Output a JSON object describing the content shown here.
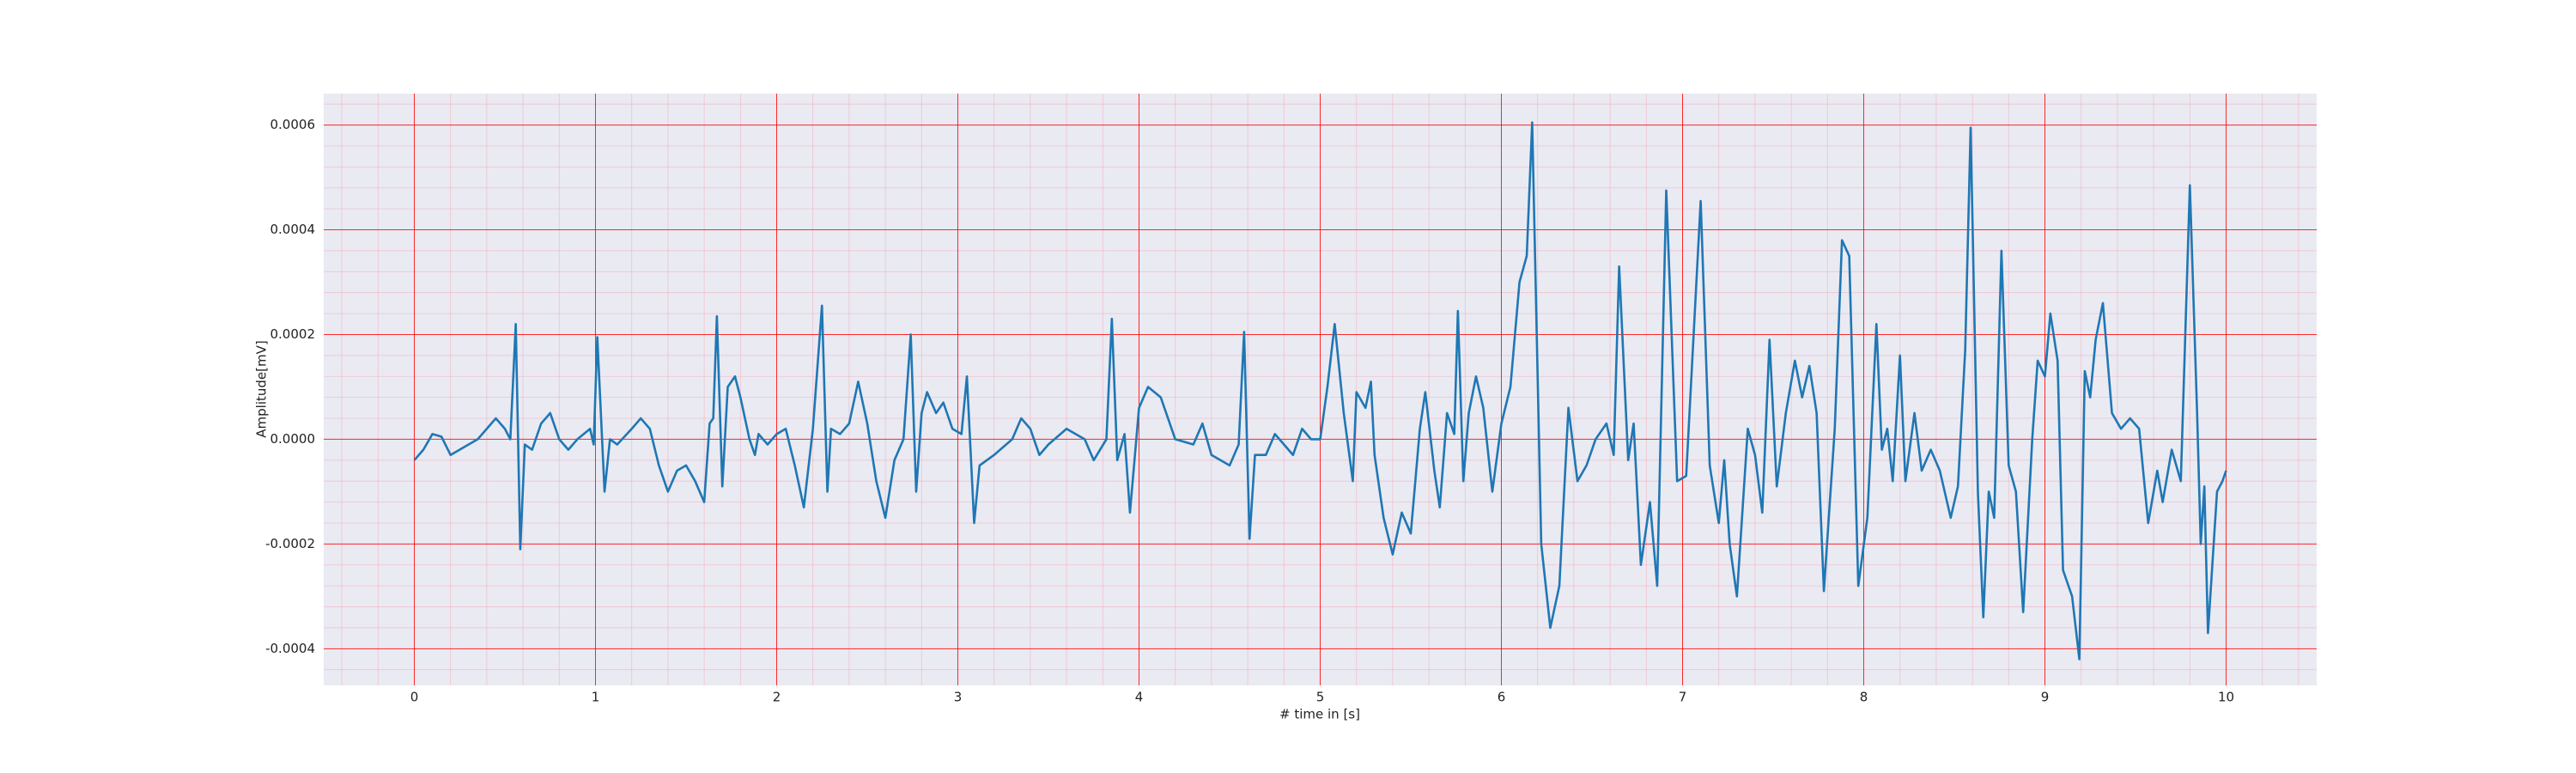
{
  "chart_data": {
    "type": "line",
    "xlabel": "# time in [s]",
    "ylabel": "Amplitude[mV]",
    "xlim": [
      -0.5,
      10.5
    ],
    "ylim": [
      -0.00047,
      0.00066
    ],
    "xticks": [
      0,
      1,
      2,
      3,
      4,
      5,
      6,
      7,
      8,
      9,
      10
    ],
    "yticks": [
      -0.0004,
      -0.0002,
      {
        "value": 0,
        "label": "0.0000"
      },
      0.0002,
      0.0004,
      0.0006
    ],
    "grid": true,
    "grid_color": "#ff0000",
    "minor_grid": true,
    "minor_grid_color": "#f4a6b8",
    "background": "#eaeaf2",
    "series": [
      {
        "color": "#1f77b4",
        "x": [
          0,
          0.05,
          0.1,
          0.15,
          0.2,
          0.25,
          0.3,
          0.35,
          0.4,
          0.45,
          0.5,
          0.53,
          0.56,
          0.585,
          0.61,
          0.65,
          0.7,
          0.75,
          0.8,
          0.85,
          0.9,
          0.97,
          0.99,
          1.01,
          1.05,
          1.08,
          1.12,
          1.2,
          1.25,
          1.3,
          1.35,
          1.4,
          1.45,
          1.5,
          1.55,
          1.6,
          1.63,
          1.65,
          1.67,
          1.7,
          1.73,
          1.77,
          1.8,
          1.85,
          1.88,
          1.9,
          1.95,
          2,
          2.05,
          2.1,
          2.15,
          2.2,
          2.25,
          2.28,
          2.3,
          2.35,
          2.4,
          2.45,
          2.5,
          2.55,
          2.6,
          2.65,
          2.7,
          2.74,
          2.77,
          2.8,
          2.83,
          2.88,
          2.92,
          2.97,
          3.02,
          3.05,
          3.09,
          3.12,
          3.2,
          3.3,
          3.35,
          3.4,
          3.45,
          3.5,
          3.6,
          3.7,
          3.75,
          3.82,
          3.85,
          3.88,
          3.92,
          3.95,
          4,
          4.05,
          4.12,
          4.2,
          4.3,
          4.35,
          4.4,
          4.5,
          4.55,
          4.58,
          4.61,
          4.64,
          4.7,
          4.75,
          4.8,
          4.85,
          4.9,
          4.95,
          5,
          5.04,
          5.08,
          5.13,
          5.18,
          5.2,
          5.25,
          5.28,
          5.3,
          5.35,
          5.4,
          5.45,
          5.5,
          5.55,
          5.58,
          5.63,
          5.66,
          5.7,
          5.74,
          5.76,
          5.79,
          5.82,
          5.86,
          5.9,
          5.95,
          6,
          6.05,
          6.1,
          6.14,
          6.17,
          6.22,
          6.27,
          6.32,
          6.37,
          6.42,
          6.47,
          6.52,
          6.58,
          6.62,
          6.65,
          6.7,
          6.73,
          6.77,
          6.82,
          6.86,
          6.91,
          6.97,
          7.02,
          7.1,
          7.15,
          7.2,
          7.23,
          7.26,
          7.3,
          7.36,
          7.4,
          7.44,
          7.48,
          7.52,
          7.57,
          7.62,
          7.66,
          7.7,
          7.74,
          7.78,
          7.84,
          7.88,
          7.92,
          7.97,
          8.02,
          8.07,
          8.1,
          8.13,
          8.16,
          8.2,
          8.23,
          8.28,
          8.32,
          8.37,
          8.42,
          8.48,
          8.52,
          8.56,
          8.59,
          8.63,
          8.66,
          8.69,
          8.72,
          8.76,
          8.8,
          8.84,
          8.88,
          8.93,
          8.96,
          9,
          9.03,
          9.07,
          9.1,
          9.15,
          9.19,
          9.22,
          9.25,
          9.28,
          9.32,
          9.37,
          9.42,
          9.47,
          9.52,
          9.57,
          9.62,
          9.65,
          9.7,
          9.75,
          9.8,
          9.84,
          9.86,
          9.88,
          9.9,
          9.95,
          9.98,
          10
        ],
        "values": [
          -4e-05,
          -2e-05,
          1e-05,
          5e-06,
          -3e-05,
          -2e-05,
          -1e-05,
          0,
          2e-05,
          4e-05,
          2e-05,
          0,
          0.00022,
          -0.00021,
          -1e-05,
          -2e-05,
          3e-05,
          5e-05,
          0,
          -2e-05,
          0,
          2e-05,
          -1e-05,
          0.000195,
          -0.0001,
          0,
          -1e-05,
          2e-05,
          4e-05,
          2e-05,
          -5e-05,
          -0.0001,
          -6e-05,
          -5e-05,
          -8e-05,
          -0.00012,
          3e-05,
          4e-05,
          0.000235,
          -9e-05,
          0.0001,
          0.00012,
          8e-05,
          0,
          -3e-05,
          1e-05,
          -1e-05,
          1e-05,
          2e-05,
          -5e-05,
          -0.00013,
          2e-05,
          0.000255,
          -0.0001,
          2e-05,
          1e-05,
          3e-05,
          0.00011,
          3e-05,
          -8e-05,
          -0.00015,
          -4e-05,
          0,
          0.0002,
          -0.0001,
          5e-05,
          9e-05,
          5e-05,
          7e-05,
          2e-05,
          1e-05,
          0.00012,
          -0.00016,
          -5e-05,
          -3e-05,
          0,
          4e-05,
          2e-05,
          -3e-05,
          -1e-05,
          2e-05,
          0,
          -4e-05,
          0,
          0.00023,
          -4e-05,
          1e-05,
          -0.00014,
          6e-05,
          0.0001,
          8e-05,
          0,
          -1e-05,
          3e-05,
          -3e-05,
          -5e-05,
          -1e-05,
          0.000205,
          -0.00019,
          -3e-05,
          -3e-05,
          1e-05,
          -1e-05,
          -3e-05,
          2e-05,
          0,
          0,
          0.0001,
          0.00022,
          5e-05,
          -8e-05,
          9e-05,
          6e-05,
          0.00011,
          -3e-05,
          -0.00015,
          -0.00022,
          -0.00014,
          -0.00018,
          2e-05,
          9e-05,
          -6e-05,
          -0.00013,
          5e-05,
          1e-05,
          0.000245,
          -8e-05,
          5e-05,
          0.00012,
          6e-05,
          -0.0001,
          3e-05,
          0.0001,
          0.0003,
          0.00035,
          0.000605,
          -0.0002,
          -0.00036,
          -0.00028,
          6e-05,
          -8e-05,
          -5e-05,
          0,
          3e-05,
          -3e-05,
          0.00033,
          -4e-05,
          3e-05,
          -0.00024,
          -0.00012,
          -0.00028,
          0.000475,
          -8e-05,
          -7e-05,
          0.000455,
          -5e-05,
          -0.00016,
          -4e-05,
          -0.0002,
          -0.0003,
          2e-05,
          -3e-05,
          -0.00014,
          0.00019,
          -9e-05,
          5e-05,
          0.00015,
          8e-05,
          0.00014,
          5e-05,
          -0.00029,
          2e-05,
          0.00038,
          0.00035,
          -0.00028,
          -0.00015,
          0.00022,
          -2e-05,
          2e-05,
          -8e-05,
          0.00016,
          -8e-05,
          5e-05,
          -6e-05,
          -2e-05,
          -6e-05,
          -0.00015,
          -9e-05,
          0.00017,
          0.000595,
          -0.0001,
          -0.00034,
          -0.0001,
          -0.00015,
          0.00036,
          -5e-05,
          -0.0001,
          -0.00033,
          0,
          0.00015,
          0.00012,
          0.00024,
          0.00015,
          -0.00025,
          -0.0003,
          -0.00042,
          0.00013,
          8e-05,
          0.00019,
          0.00026,
          5e-05,
          2e-05,
          4e-05,
          2e-05,
          -0.00016,
          -6e-05,
          -0.00012,
          -2e-05,
          -8e-05,
          0.000485,
          5e-05,
          -0.0002,
          -9e-05,
          -0.00037,
          -0.0001,
          -8e-05,
          -6e-05
        ]
      }
    ]
  }
}
